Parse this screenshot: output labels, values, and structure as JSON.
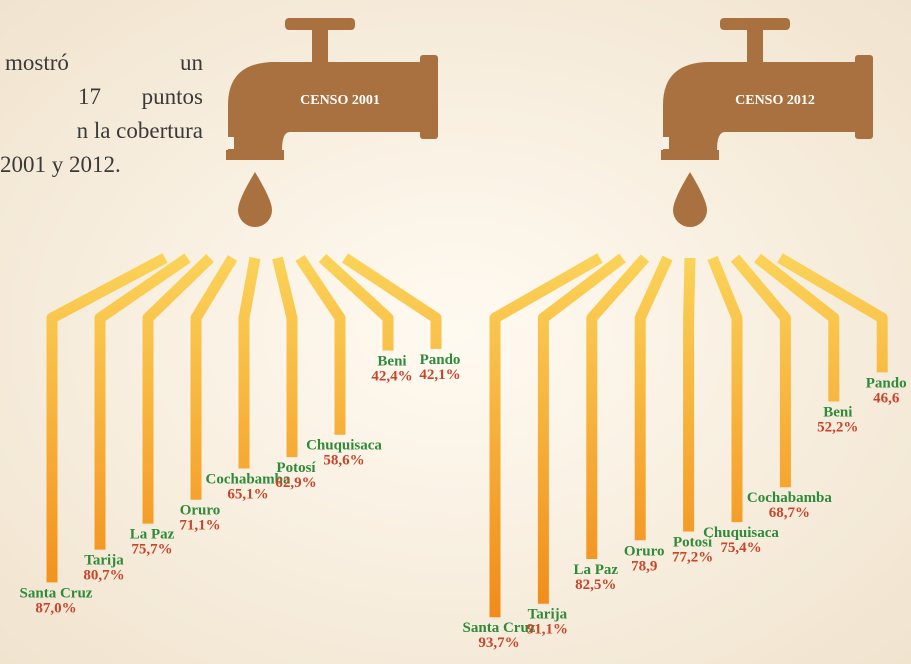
{
  "intro_lines": [
    "mostró",
    "un",
    "17",
    "puntos",
    "n la cobertura",
    "2001 y 2012."
  ],
  "chart_data": [
    {
      "type": "stream",
      "title": "CENSO 2001",
      "categories": [
        "Santa Cruz",
        "Tarija",
        "La Paz",
        "Oruro",
        "Cochabamba",
        "Potosí",
        "Chuquisaca",
        "Beni",
        "Pando"
      ],
      "values": [
        87.0,
        80.7,
        75.7,
        71.1,
        65.1,
        62.9,
        58.6,
        42.4,
        42.1
      ],
      "value_labels": [
        "87,0%",
        "80,7%",
        "75,7%",
        "71,1%",
        "65,1%",
        "62,9%",
        "58,6%",
        "42,4%",
        "42,1%"
      ],
      "color": "#f59a1c",
      "label_color": "#c8452a",
      "name_color": "#2f8a3a",
      "faucet_color": "#a9713f"
    },
    {
      "type": "stream",
      "title": "CENSO 2012",
      "categories": [
        "Santa Cruz",
        "Tarija",
        "La Paz",
        "Oruro",
        "Potosí",
        "Chuquisaca",
        "Cochabamba",
        "Beni",
        "Pando"
      ],
      "values": [
        93.7,
        91.1,
        82.5,
        78.9,
        77.2,
        75.4,
        68.7,
        52.2,
        46.6
      ],
      "value_labels": [
        "93,7%",
        "91,1%",
        "82,5%",
        "78,9",
        "77,2%",
        "75,4%",
        "68,7%",
        "52,2%",
        "46,6"
      ],
      "color": "#f59a1c",
      "label_color": "#c8452a",
      "name_color": "#2f8a3a",
      "faucet_color": "#a9713f"
    }
  ]
}
